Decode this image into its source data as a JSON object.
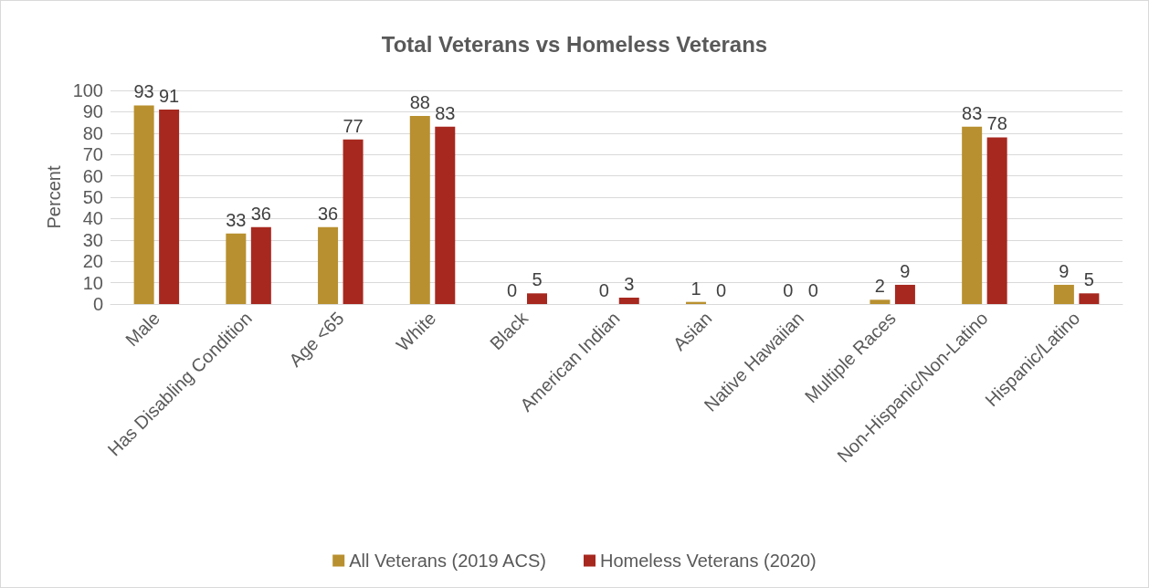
{
  "chart_data": {
    "type": "bar",
    "title": "Total Veterans vs Homeless Veterans",
    "ylabel": "Percent",
    "categories": [
      "Male",
      "Has Disabling Condition",
      "Age <65",
      "White",
      "Black",
      "American Indian",
      "Asian",
      "Native Hawaiian",
      "Multiple Races",
      "Non-Hispanic/Non-Latino",
      "Hispanic/Latino"
    ],
    "series": [
      {
        "name": "All Veterans (2019 ACS)",
        "color": "#b8902f",
        "values": [
          93,
          33,
          36,
          88,
          0,
          0,
          1,
          0,
          2,
          83,
          9
        ]
      },
      {
        "name": "Homeless Veterans (2020)",
        "color": "#a7281f",
        "values": [
          91,
          36,
          77,
          83,
          5,
          3,
          0,
          0,
          9,
          78,
          5
        ]
      }
    ],
    "ylim": [
      0,
      100
    ],
    "yticks": [
      0,
      10,
      20,
      30,
      40,
      50,
      60,
      70,
      80,
      90,
      100
    ],
    "grid": "y",
    "legend": "bottom",
    "data_labels": true
  }
}
